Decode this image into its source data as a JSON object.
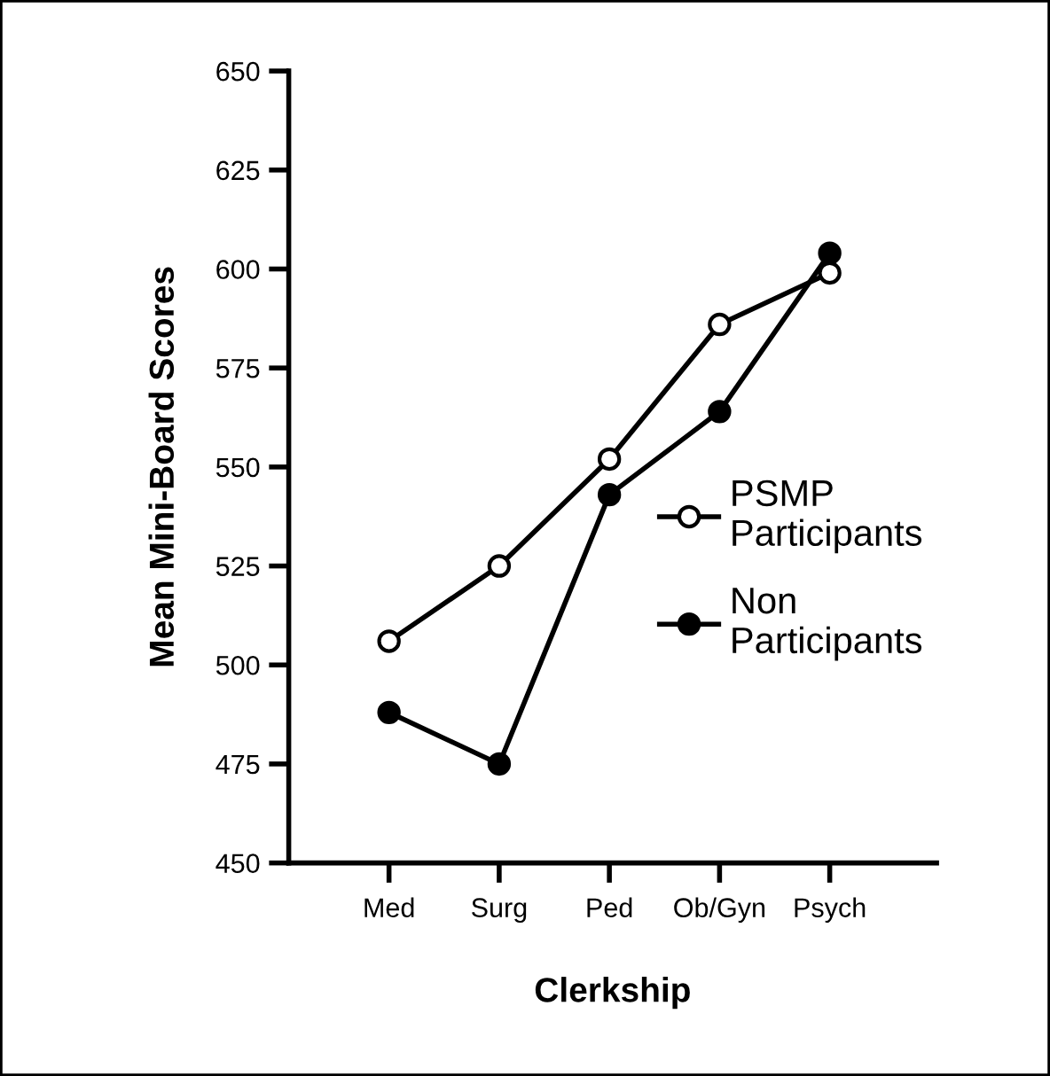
{
  "chart_data": {
    "type": "line",
    "xlabel": "Clerkship",
    "ylabel": "Mean Mini-Board Scores",
    "categories": [
      "Med",
      "Surg",
      "Ped",
      "Ob/Gyn",
      "Psych"
    ],
    "series": [
      {
        "name": "PSMP\nParticipants",
        "color": "#000000",
        "values": [
          506,
          525,
          552,
          586,
          599
        ]
      },
      {
        "name": "Non\nParticipants",
        "color": "#000000",
        "values": [
          488,
          475,
          543,
          564,
          604
        ]
      }
    ],
    "ylim": [
      450,
      650
    ],
    "yticks": [
      450,
      475,
      500,
      525,
      550,
      575,
      600,
      625,
      650
    ],
    "grid": false,
    "legend": "right",
    "marker": "circle",
    "line_style": "solid"
  }
}
